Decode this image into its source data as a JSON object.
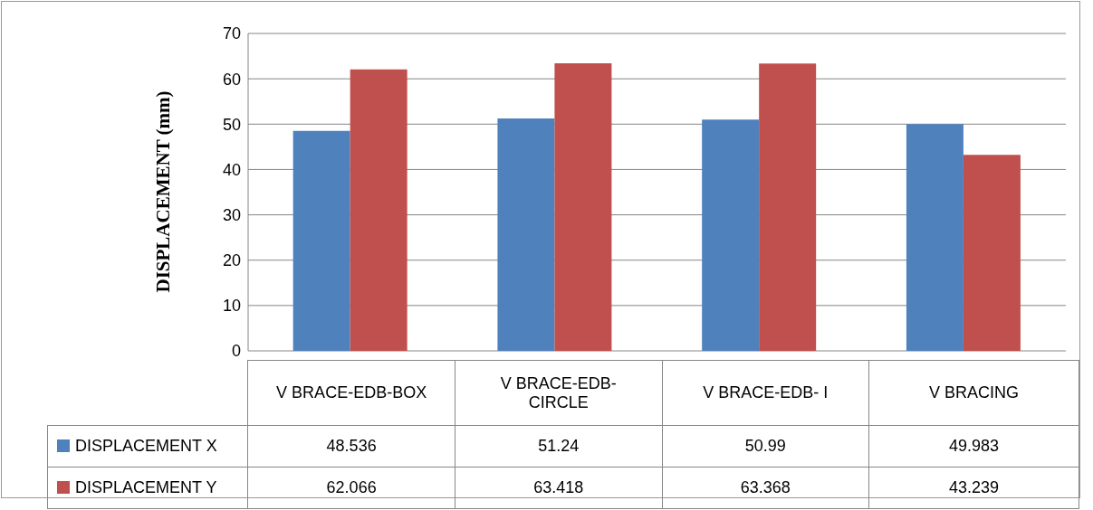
{
  "chart_data": {
    "type": "bar",
    "ylabel": "DISPLACEMENT (mm)",
    "categories": [
      "V BRACE-EDB-BOX",
      "V BRACE-EDB-CIRCLE",
      "V BRACE-EDB- I",
      "V BRACING"
    ],
    "series": [
      {
        "name": "DISPLACEMENT X",
        "color": "#4f81bd",
        "values": [
          48.536,
          51.24,
          50.99,
          49.983
        ]
      },
      {
        "name": "DISPLACEMENT Y",
        "color": "#c0504d",
        "values": [
          62.066,
          63.418,
          63.368,
          43.239
        ]
      }
    ],
    "ylim": [
      0,
      70
    ],
    "yticks": [
      0,
      10,
      20,
      30,
      40,
      50,
      60,
      70
    ],
    "grid": "y",
    "legend": "bottom",
    "data_labels": true
  }
}
